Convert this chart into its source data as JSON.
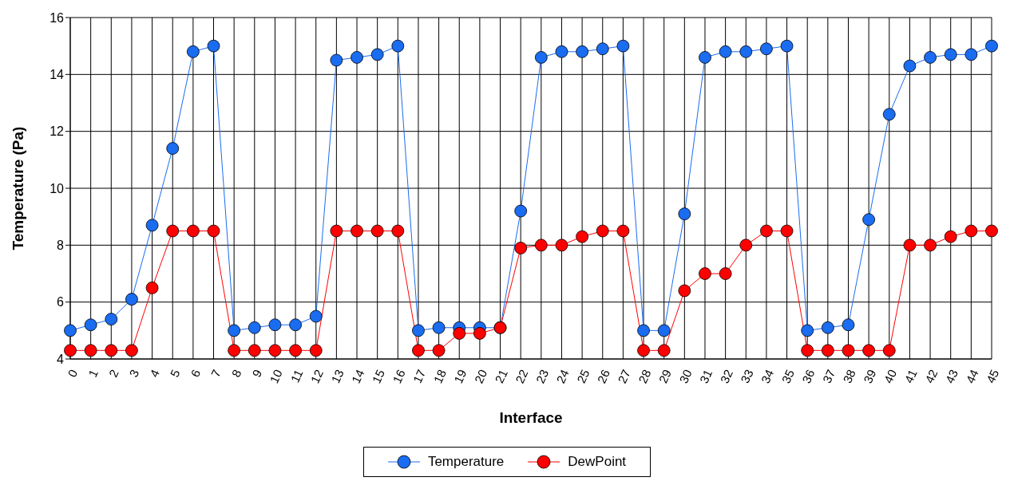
{
  "chart_data": {
    "type": "line",
    "xlabel": "Interface",
    "ylabel": "Temperature (Pa)",
    "categories": [
      "0",
      "1",
      "2",
      "3",
      "4",
      "5",
      "6",
      "7",
      "8",
      "9",
      "10",
      "11",
      "12",
      "13",
      "14",
      "15",
      "16",
      "17",
      "18",
      "19",
      "20",
      "21",
      "22",
      "23",
      "24",
      "25",
      "26",
      "27",
      "28",
      "29",
      "30",
      "31",
      "32",
      "33",
      "34",
      "35",
      "36",
      "37",
      "38",
      "39",
      "40",
      "41",
      "42",
      "43",
      "44",
      "45"
    ],
    "series": [
      {
        "name": "Temperature",
        "color": "#1a6cf0",
        "values": [
          5.0,
          5.2,
          5.4,
          6.1,
          8.7,
          11.4,
          14.8,
          15.0,
          5.0,
          5.1,
          5.2,
          5.2,
          5.5,
          14.5,
          14.6,
          14.7,
          15.0,
          5.0,
          5.1,
          5.1,
          5.1,
          5.1,
          9.2,
          14.6,
          14.8,
          14.8,
          14.9,
          15.0,
          5.0,
          5.0,
          9.1,
          14.6,
          14.8,
          14.8,
          14.9,
          15.0,
          5.0,
          5.1,
          5.2,
          8.9,
          12.6,
          14.3,
          14.6,
          14.7,
          14.7,
          15.0
        ]
      },
      {
        "name": "DewPoint",
        "color": "#ff0000",
        "values": [
          4.3,
          4.3,
          4.3,
          4.3,
          6.5,
          8.5,
          8.5,
          8.5,
          4.3,
          4.3,
          4.3,
          4.3,
          4.3,
          8.5,
          8.5,
          8.5,
          8.5,
          4.3,
          4.3,
          4.9,
          4.9,
          5.1,
          7.9,
          8.0,
          8.0,
          8.3,
          8.5,
          8.5,
          4.3,
          4.3,
          6.4,
          7.0,
          7.0,
          8.0,
          8.5,
          8.5,
          4.3,
          4.3,
          4.3,
          4.3,
          4.3,
          8.0,
          8.0,
          8.3,
          8.5,
          8.5
        ]
      }
    ],
    "ylim": [
      4,
      16
    ],
    "yticks": [
      4,
      6,
      8,
      10,
      12,
      14,
      16
    ],
    "grid": true,
    "legend": "bottom",
    "marker": "circle",
    "line_style": "solid"
  }
}
